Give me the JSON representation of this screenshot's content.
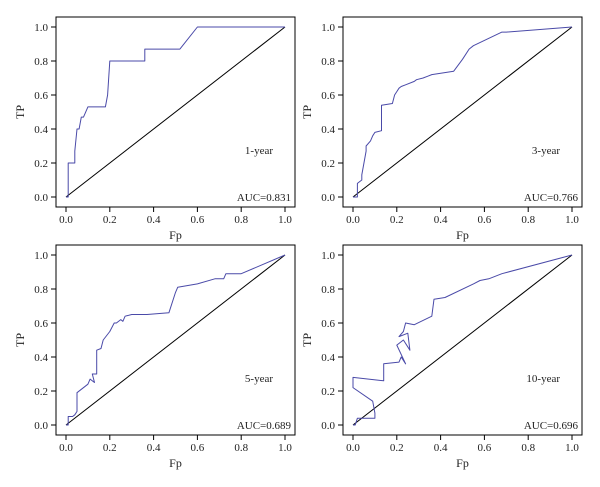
{
  "figure": {
    "line_color": "#4a4aa8",
    "diagonal_color": "#000000",
    "frame_color": "#000000"
  },
  "chart_data": [
    {
      "type": "line",
      "panel_label": "1-year",
      "auc_text": "AUC=0.831",
      "xlabel": "Fp",
      "ylabel": "TP",
      "xlim": [
        0,
        1
      ],
      "ylim": [
        0,
        1
      ],
      "xticks": [
        "0.0",
        "0.2",
        "0.4",
        "0.6",
        "0.8",
        "1.0"
      ],
      "yticks": [
        "0.0",
        "0.2",
        "0.4",
        "0.6",
        "0.8",
        "1.0"
      ],
      "grid": false,
      "series": [
        {
          "x": [
            0,
            0.01,
            0.01,
            0.04,
            0.04,
            0.05,
            0.06,
            0.07,
            0.08,
            0.1,
            0.12,
            0.18,
            0.19,
            0.2,
            0.36,
            0.36,
            0.38,
            0.52,
            0.6,
            1
          ],
          "y": [
            0,
            0,
            0.2,
            0.2,
            0.27,
            0.4,
            0.4,
            0.47,
            0.47,
            0.53,
            0.53,
            0.53,
            0.6,
            0.8,
            0.8,
            0.87,
            0.87,
            0.87,
            1,
            1
          ]
        }
      ]
    },
    {
      "type": "line",
      "panel_label": "3-year",
      "auc_text": "AUC=0.766",
      "xlabel": "Fp",
      "ylabel": "TP",
      "xlim": [
        0,
        1
      ],
      "ylim": [
        0,
        1
      ],
      "xticks": [
        "0.0",
        "0.2",
        "0.4",
        "0.6",
        "0.8",
        "1.0"
      ],
      "yticks": [
        "0.0",
        "0.2",
        "0.4",
        "0.6",
        "0.8",
        "1.0"
      ],
      "grid": false,
      "series": [
        {
          "x": [
            0,
            0.02,
            0.02,
            0.04,
            0.04,
            0.06,
            0.06,
            0.08,
            0.09,
            0.1,
            0.13,
            0.13,
            0.18,
            0.19,
            0.2,
            0.21,
            0.22,
            0.24,
            0.28,
            0.29,
            0.32,
            0.34,
            0.36,
            0.46,
            0.5,
            0.53,
            0.55,
            0.68,
            0.7,
            1
          ],
          "y": [
            0,
            0,
            0.08,
            0.1,
            0.13,
            0.27,
            0.3,
            0.33,
            0.36,
            0.38,
            0.39,
            0.54,
            0.55,
            0.6,
            0.62,
            0.64,
            0.65,
            0.66,
            0.68,
            0.69,
            0.7,
            0.71,
            0.72,
            0.74,
            0.81,
            0.87,
            0.89,
            0.97,
            0.97,
            1
          ]
        }
      ]
    },
    {
      "type": "line",
      "panel_label": "5-year",
      "auc_text": "AUC=0.689",
      "xlabel": "Fp",
      "ylabel": "TP",
      "xlim": [
        0,
        1
      ],
      "ylim": [
        0,
        1
      ],
      "xticks": [
        "0.0",
        "0.2",
        "0.4",
        "0.6",
        "0.8",
        "1.0"
      ],
      "yticks": [
        "0.0",
        "0.2",
        "0.4",
        "0.6",
        "0.8",
        "1.0"
      ],
      "grid": false,
      "series": [
        {
          "x": [
            0,
            0.01,
            0.01,
            0.03,
            0.04,
            0.05,
            0.05,
            0.1,
            0.11,
            0.13,
            0.12,
            0.14,
            0.14,
            0.16,
            0.17,
            0.2,
            0.22,
            0.23,
            0.25,
            0.26,
            0.27,
            0.3,
            0.37,
            0.47,
            0.5,
            0.51,
            0.6,
            0.68,
            0.72,
            0.73,
            0.8,
            1
          ],
          "y": [
            0,
            0,
            0.05,
            0.05,
            0.06,
            0.08,
            0.19,
            0.24,
            0.27,
            0.25,
            0.3,
            0.3,
            0.44,
            0.45,
            0.5,
            0.55,
            0.6,
            0.6,
            0.62,
            0.61,
            0.64,
            0.65,
            0.65,
            0.66,
            0.78,
            0.81,
            0.83,
            0.86,
            0.86,
            0.89,
            0.89,
            1
          ]
        }
      ]
    },
    {
      "type": "line",
      "panel_label": "10-year",
      "auc_text": "AUC=0.696",
      "xlabel": "Fp",
      "ylabel": "TP",
      "xlim": [
        0,
        1
      ],
      "ylim": [
        0,
        1
      ],
      "xticks": [
        "0.0",
        "0.2",
        "0.4",
        "0.6",
        "0.8",
        "1.0"
      ],
      "yticks": [
        "0.0",
        "0.2",
        "0.4",
        "0.6",
        "0.8",
        "1.0"
      ],
      "grid": false,
      "series": [
        {
          "x": [
            0,
            0.01,
            0.02,
            0.1,
            0.1,
            0.09,
            0.0,
            0.0,
            0.14,
            0.14,
            0.21,
            0.22,
            0.24,
            0.2,
            0.23,
            0.26,
            0.25,
            0.21,
            0.23,
            0.24,
            0.28,
            0.36,
            0.37,
            0.42,
            0.55,
            0.58,
            0.62,
            0.68,
            1
          ],
          "y": [
            0,
            0,
            0.04,
            0.04,
            0.07,
            0.14,
            0.22,
            0.28,
            0.26,
            0.36,
            0.37,
            0.4,
            0.36,
            0.47,
            0.5,
            0.44,
            0.54,
            0.52,
            0.55,
            0.6,
            0.59,
            0.64,
            0.74,
            0.75,
            0.83,
            0.85,
            0.86,
            0.89,
            1
          ]
        }
      ]
    }
  ]
}
